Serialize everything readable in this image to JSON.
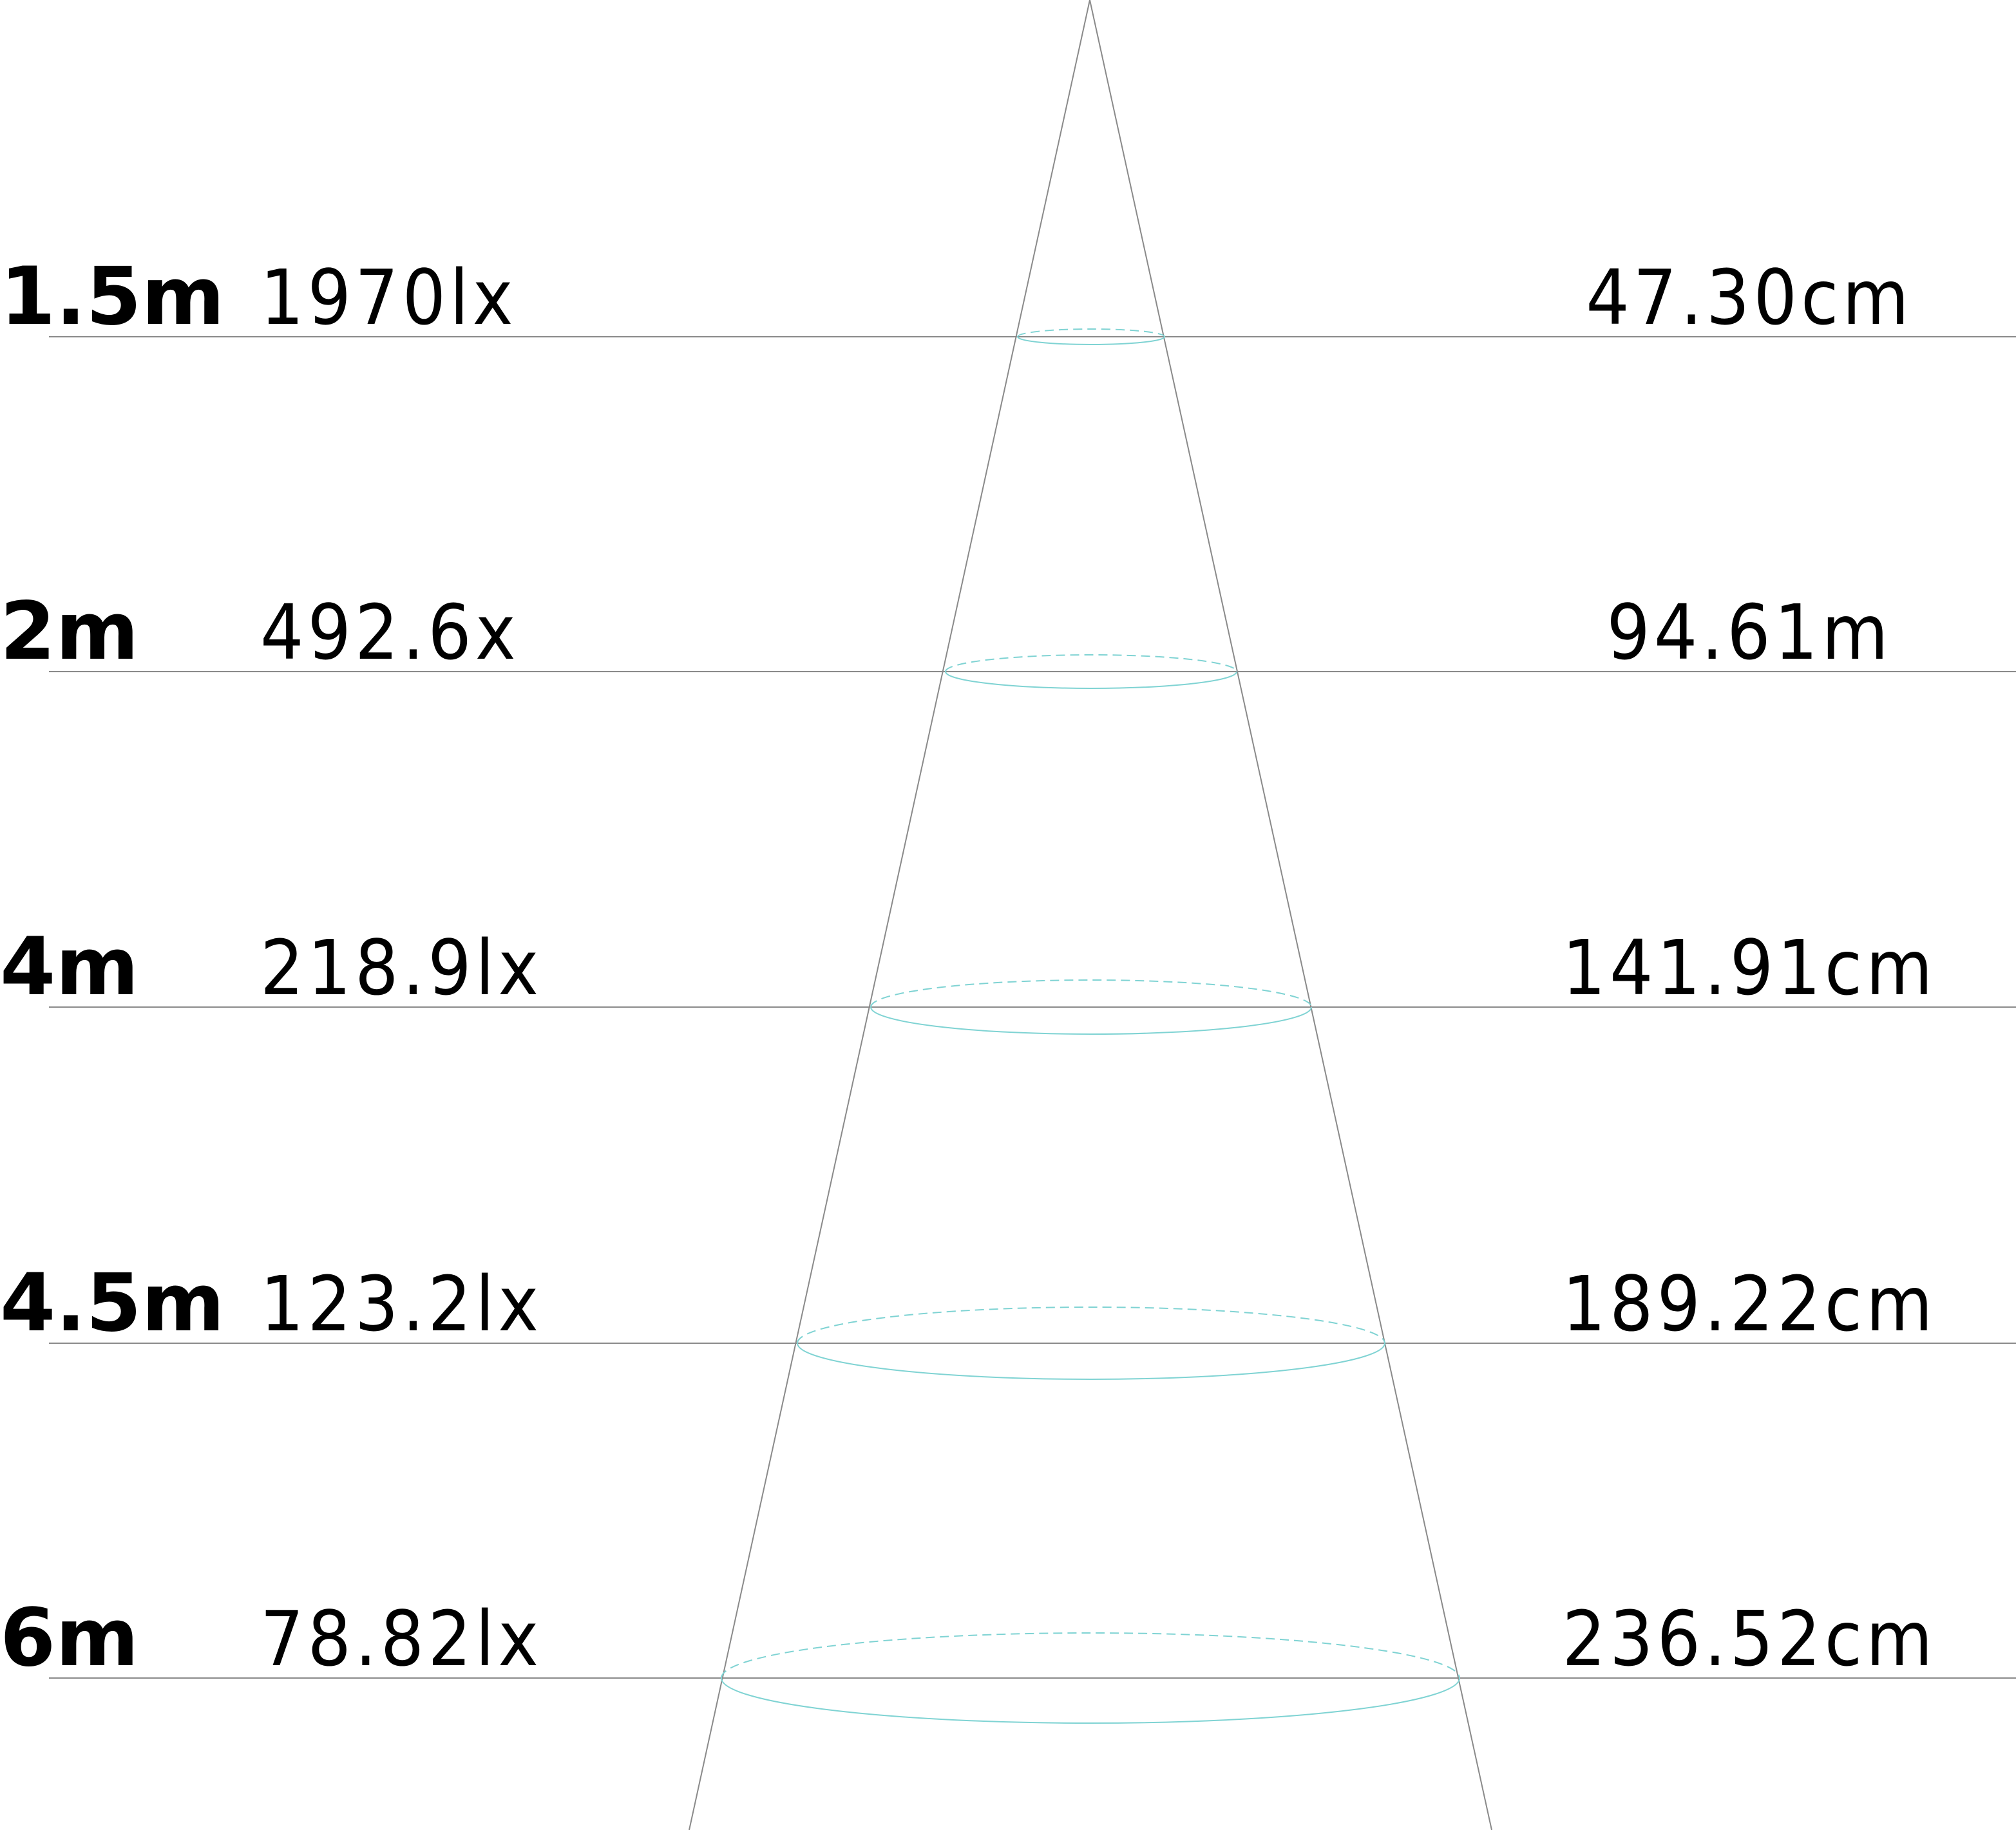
{
  "diagram": {
    "colors": {
      "line": "#8a8a8a",
      "beam_ellipse": "#7fd3d3",
      "text": "#000000"
    },
    "rows": [
      {
        "distance": "1.5m",
        "illuminance": "1970lx",
        "diameter": "47.30cm"
      },
      {
        "distance": "2m",
        "illuminance": "492.6x",
        "diameter": "94.61m"
      },
      {
        "distance": "4m",
        "illuminance": "218.9lx",
        "diameter": "141.91cm"
      },
      {
        "distance": "4.5m",
        "illuminance": "123.2lx",
        "diameter": "189.22cm"
      },
      {
        "distance": "6m",
        "illuminance": "78.82lx",
        "diameter": "236.52cm"
      }
    ]
  }
}
